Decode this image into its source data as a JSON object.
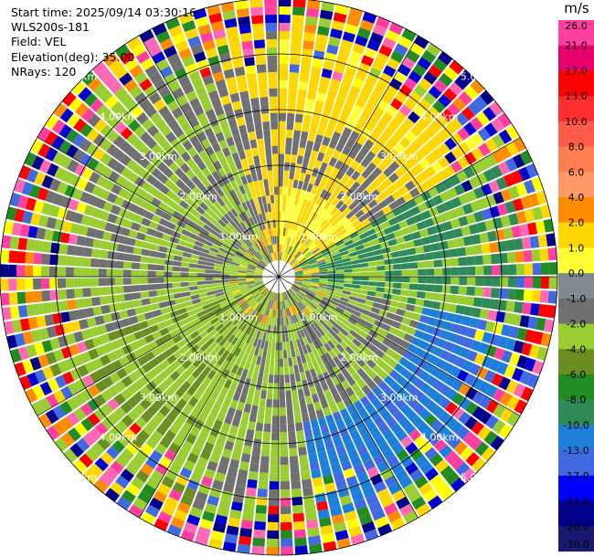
{
  "header": {
    "start_time": "Start time: 2025/09/14 03:30:16",
    "instrument": "WLS200s-181",
    "field": "Field: VEL",
    "elevation": "Elevation(deg): 35.00",
    "nrays": "NRays: 120"
  },
  "colorbar": {
    "unit": "m/s",
    "ticks": [
      "26.0",
      "21.0",
      "17.0",
      "13.0",
      "10.0",
      "8.0",
      "6.0",
      "4.0",
      "2.0",
      "1.0",
      "0.0",
      "-1.0",
      "-2.0",
      "-4.0",
      "-6.0",
      "-8.0",
      "-10.0",
      "-13.0",
      "-17.0",
      "-21.0",
      "-26.0",
      "-30.0"
    ],
    "colors": [
      "#ff3fa0",
      "#e8006e",
      "#ff0000",
      "#ff2d2d",
      "#ff5a4a",
      "#ff7f50",
      "#ff9966",
      "#ff8c00",
      "#ffd700",
      "#ffff33",
      "#808a90",
      "#707070",
      "#9acd32",
      "#6b8e23",
      "#228b22",
      "#2e8b57",
      "#1e7fd8",
      "#4169e1",
      "#0000ff",
      "#00008b",
      "#191970"
    ]
  },
  "chart_data": {
    "type": "ppi",
    "field": "VEL",
    "units": "m/s",
    "elevation_deg": 35.0,
    "n_rays": 120,
    "range_rings_km": [
      1.0,
      2.0,
      3.0,
      4.0,
      5.0
    ],
    "ring_labels": [
      "1.00km",
      "2.00km",
      "3.00km",
      "4.00km",
      "5.00km"
    ]
  }
}
